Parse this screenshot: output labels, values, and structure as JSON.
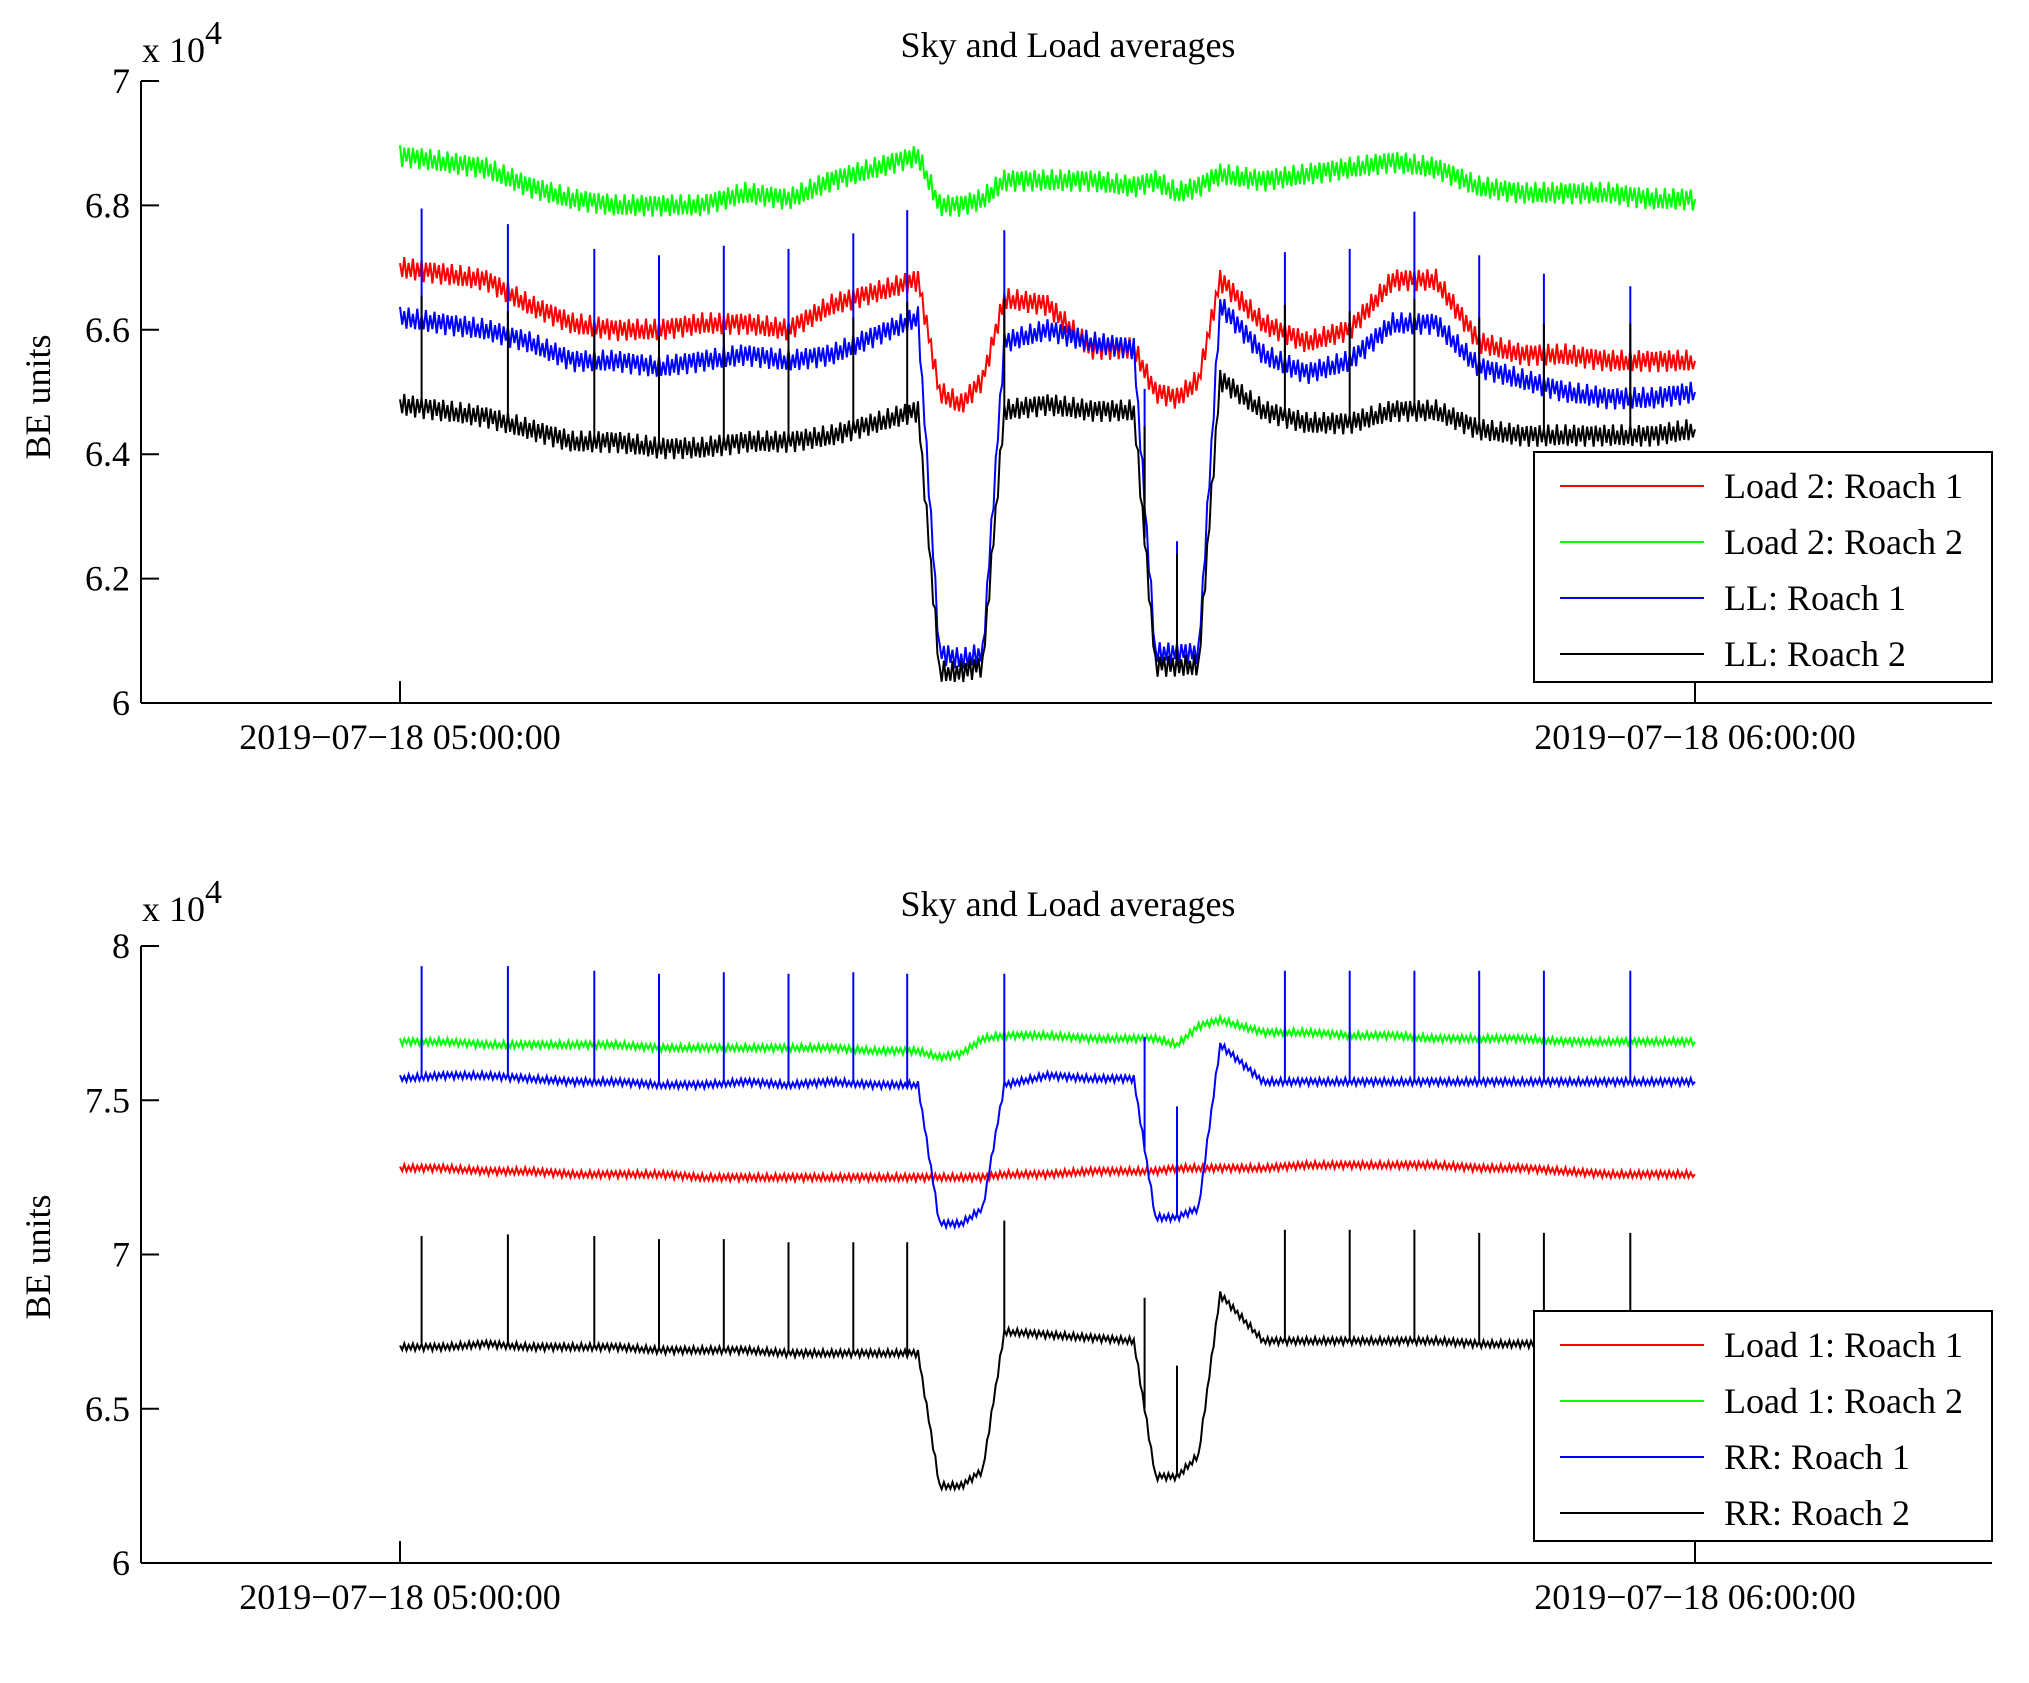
{
  "chart_data": [
    {
      "type": "line",
      "title": "Sky and Load averages",
      "xlabel": "",
      "ylabel": "BE units",
      "y_multiplier": "x 10",
      "y_multiplier_exponent": "4",
      "x_ticks": [
        "2019−07−18 05:00:00",
        "2019−07−18 06:00:00"
      ],
      "xlim": [
        "2019-07-18 04:48:00",
        "2019-07-18 06:15:00"
      ],
      "y_ticks": [
        "6",
        "6.2",
        "6.4",
        "6.6",
        "6.8",
        "7"
      ],
      "ylim": [
        6.0,
        7.0
      ],
      "grid": false,
      "legend_position": "bottom-right",
      "x": [
        0,
        2,
        4,
        6,
        8,
        10,
        12,
        14,
        16,
        18,
        20,
        22,
        24,
        25,
        26,
        27,
        28,
        30,
        32,
        34,
        35,
        36,
        37,
        38,
        40,
        42,
        44,
        46,
        48,
        50,
        52,
        54,
        56,
        58,
        60
      ],
      "x_unit": "minutes after 2019-07-18 05:00:00",
      "series": [
        {
          "name": "Load 2: Roach 1",
          "color": "#ff0000",
          "values": [
            6.7,
            6.69,
            6.68,
            6.64,
            6.61,
            6.6,
            6.6,
            6.61,
            6.61,
            6.6,
            6.64,
            6.66,
            6.68,
            6.5,
            6.48,
            6.52,
            6.65,
            6.64,
            6.57,
            6.57,
            6.5,
            6.49,
            6.52,
            6.68,
            6.61,
            6.58,
            6.6,
            6.68,
            6.68,
            6.58,
            6.56,
            6.56,
            6.55,
            6.55,
            6.55
          ]
        },
        {
          "name": "Load 2: Roach 2",
          "color": "#00ff00",
          "values": [
            6.88,
            6.87,
            6.86,
            6.83,
            6.81,
            6.8,
            6.8,
            6.8,
            6.82,
            6.81,
            6.84,
            6.86,
            6.88,
            6.8,
            6.8,
            6.81,
            6.84,
            6.84,
            6.84,
            6.83,
            6.84,
            6.82,
            6.83,
            6.85,
            6.84,
            6.85,
            6.86,
            6.87,
            6.86,
            6.83,
            6.82,
            6.82,
            6.82,
            6.81,
            6.81
          ]
        },
        {
          "name": "LL: Roach 1",
          "color": "#0000ff",
          "values": [
            6.62,
            6.61,
            6.6,
            6.58,
            6.55,
            6.55,
            6.54,
            6.55,
            6.56,
            6.55,
            6.56,
            6.59,
            6.62,
            6.08,
            6.07,
            6.08,
            6.58,
            6.6,
            6.58,
            6.57,
            6.08,
            6.08,
            6.08,
            6.64,
            6.56,
            6.53,
            6.55,
            6.61,
            6.61,
            6.54,
            6.52,
            6.5,
            6.49,
            6.49,
            6.5
          ]
        },
        {
          "name": "LL: Roach 2",
          "color": "#000000",
          "values": [
            6.48,
            6.47,
            6.46,
            6.44,
            6.42,
            6.42,
            6.41,
            6.41,
            6.42,
            6.42,
            6.43,
            6.45,
            6.47,
            6.05,
            6.05,
            6.06,
            6.47,
            6.48,
            6.47,
            6.47,
            6.06,
            6.06,
            6.06,
            6.52,
            6.47,
            6.45,
            6.45,
            6.47,
            6.47,
            6.44,
            6.43,
            6.43,
            6.43,
            6.43,
            6.44
          ]
        }
      ]
    },
    {
      "type": "line",
      "title": "Sky and Load averages",
      "xlabel": "",
      "ylabel": "BE units",
      "y_multiplier": "x 10",
      "y_multiplier_exponent": "4",
      "x_ticks": [
        "2019−07−18 05:00:00",
        "2019−07−18 06:00:00"
      ],
      "xlim": [
        "2019-07-18 04:48:00",
        "2019-07-18 06:15:00"
      ],
      "y_ticks": [
        "6",
        "6.5",
        "7",
        "7.5",
        "8"
      ],
      "ylim": [
        6.0,
        8.0
      ],
      "grid": false,
      "legend_position": "bottom-right",
      "x": [
        0,
        2,
        4,
        6,
        8,
        10,
        12,
        14,
        16,
        18,
        20,
        22,
        24,
        25,
        26,
        27,
        28,
        30,
        32,
        34,
        35,
        36,
        37,
        38,
        40,
        42,
        44,
        46,
        48,
        50,
        52,
        54,
        56,
        58,
        60
      ],
      "x_unit": "minutes after 2019-07-18 05:00:00",
      "series": [
        {
          "name": "Load 1: Roach 1",
          "color": "#ff0000",
          "values": [
            7.28,
            7.28,
            7.27,
            7.27,
            7.26,
            7.26,
            7.26,
            7.25,
            7.25,
            7.25,
            7.25,
            7.25,
            7.25,
            7.25,
            7.25,
            7.25,
            7.26,
            7.26,
            7.27,
            7.27,
            7.27,
            7.28,
            7.28,
            7.28,
            7.28,
            7.29,
            7.29,
            7.29,
            7.29,
            7.28,
            7.28,
            7.27,
            7.26,
            7.26,
            7.26
          ]
        },
        {
          "name": "Load 1: Roach 2",
          "color": "#00ff00",
          "values": [
            7.69,
            7.69,
            7.68,
            7.68,
            7.68,
            7.68,
            7.67,
            7.67,
            7.67,
            7.67,
            7.67,
            7.66,
            7.66,
            7.64,
            7.65,
            7.7,
            7.71,
            7.71,
            7.7,
            7.7,
            7.7,
            7.68,
            7.74,
            7.76,
            7.72,
            7.72,
            7.71,
            7.71,
            7.7,
            7.7,
            7.7,
            7.69,
            7.69,
            7.69,
            7.69
          ]
        },
        {
          "name": "RR: Roach 1",
          "color": "#0000ff",
          "values": [
            7.57,
            7.58,
            7.58,
            7.57,
            7.56,
            7.56,
            7.55,
            7.55,
            7.56,
            7.55,
            7.56,
            7.55,
            7.55,
            7.1,
            7.1,
            7.15,
            7.55,
            7.58,
            7.57,
            7.57,
            7.12,
            7.12,
            7.15,
            7.68,
            7.56,
            7.56,
            7.56,
            7.56,
            7.56,
            7.56,
            7.56,
            7.56,
            7.56,
            7.56,
            7.56
          ]
        },
        {
          "name": "RR: Roach 2",
          "color": "#000000",
          "values": [
            6.7,
            6.7,
            6.71,
            6.7,
            6.7,
            6.7,
            6.69,
            6.69,
            6.69,
            6.68,
            6.68,
            6.68,
            6.68,
            6.25,
            6.25,
            6.3,
            6.75,
            6.74,
            6.73,
            6.72,
            6.28,
            6.28,
            6.35,
            6.87,
            6.72,
            6.72,
            6.72,
            6.72,
            6.72,
            6.71,
            6.71,
            6.71,
            6.71,
            6.71,
            6.71
          ]
        }
      ]
    }
  ]
}
